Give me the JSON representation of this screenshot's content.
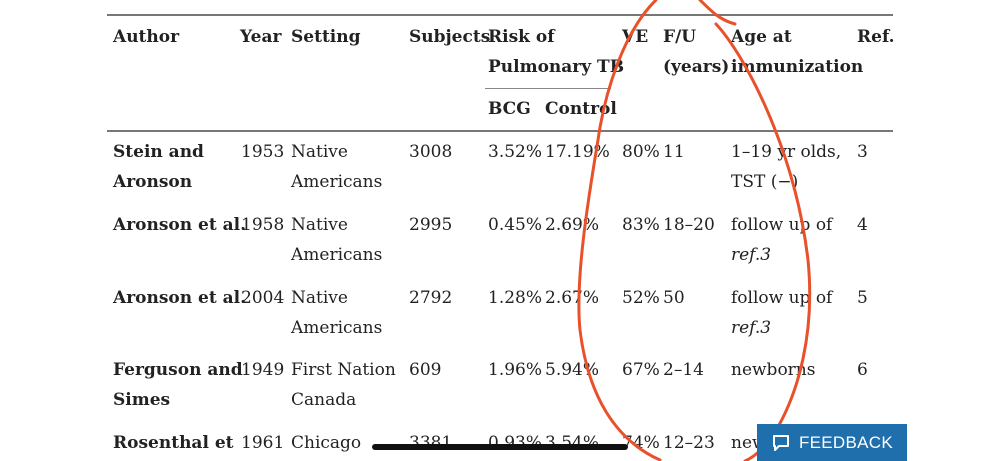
{
  "table": {
    "headers": {
      "author": "Author",
      "year": "Year",
      "setting": "Setting",
      "subjects": "Subjects",
      "risk_line1": "Risk of",
      "risk_line2": "Pulmonary TB",
      "ve": "VE",
      "fu_line1": "F/U",
      "fu_line2": "(years)",
      "age_line1": "Age at",
      "age_line2": "immunization",
      "ref": "Ref.",
      "bcg": "BCG",
      "control": "Control"
    },
    "rows": [
      {
        "author_line1": "Stein and",
        "author_line2": "Aronson",
        "year": "1953",
        "setting_line1": "Native",
        "setting_line2": "Americans",
        "subjects": "3008",
        "bcg": "3.52%",
        "control": "17.19%",
        "ve": "80%",
        "fu": "11",
        "age_line1": "1–19 yr olds,",
        "age_line2": "TST (−)",
        "ref": "3"
      },
      {
        "author_line1": "Aronson et al.",
        "author_line2": "",
        "year": "1958",
        "setting_line1": "Native",
        "setting_line2": "Americans",
        "subjects": "2995",
        "bcg": "0.45%",
        "control": "2.69%",
        "ve": "83%",
        "fu": "18–20",
        "age_line1": "follow up of",
        "age_line2": "ref.3",
        "ref": "4"
      },
      {
        "author_line1": "Aronson et al.",
        "author_line2": "",
        "year": "2004",
        "setting_line1": "Native",
        "setting_line2": "Americans",
        "subjects": "2792",
        "bcg": "1.28%",
        "control": "2.67%",
        "ve": "52%",
        "fu": "50",
        "age_line1": "follow up of",
        "age_line2": "ref.3",
        "ref": "5"
      },
      {
        "author_line1": "Ferguson and",
        "author_line2": "Simes",
        "year": "1949",
        "setting_line1": "First Nation",
        "setting_line2": "Canada",
        "subjects": "609",
        "bcg": "1.96%",
        "control": "5.94%",
        "ve": "67%",
        "fu": "2–14",
        "age_line1": "newborns",
        "age_line2": "",
        "ref": "6"
      },
      {
        "author_line1": "Rosenthal et",
        "author_line2": "",
        "year": "1961",
        "setting_line1": "Chicago",
        "setting_line2": "",
        "subjects": "3381",
        "bcg": "0.93%",
        "control": "3.54%",
        "ve": "74%",
        "fu": "12–23",
        "age_line1": "new",
        "age_line2": "",
        "ref": ""
      }
    ]
  },
  "feedback": {
    "label": "FEEDBACK",
    "icon": "chat-bubble-icon",
    "color": "#1f6fad"
  },
  "annotation": {
    "color": "#e8512a"
  }
}
